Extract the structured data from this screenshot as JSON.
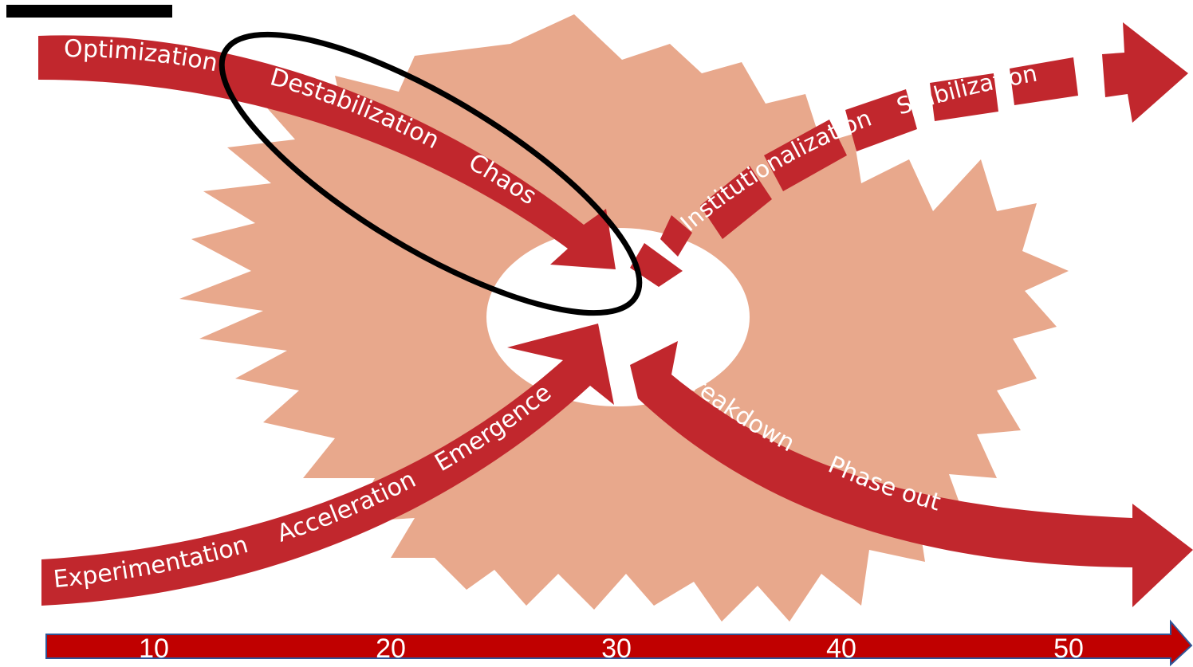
{
  "colors": {
    "burst": "#e8a88c",
    "arrow": "#c1272d",
    "timeline": "#c00000",
    "timeline_border": "#2f5597",
    "highlight_ring": "#000000",
    "text": "#ffffff"
  },
  "phases": {
    "optimization": "Optimization",
    "destabilization": "Destabilization",
    "chaos": "Chaos",
    "institutionalization": "Institutionalization",
    "stabilization": "Stabilization",
    "experimentation": "Experimentation",
    "acceleration": "Acceleration",
    "emergence": "Emergence",
    "breakdown": "Breakdown",
    "phase_out": "Phase out"
  },
  "timeline": {
    "ticks": [
      "10",
      "20",
      "30",
      "40",
      "50"
    ]
  }
}
